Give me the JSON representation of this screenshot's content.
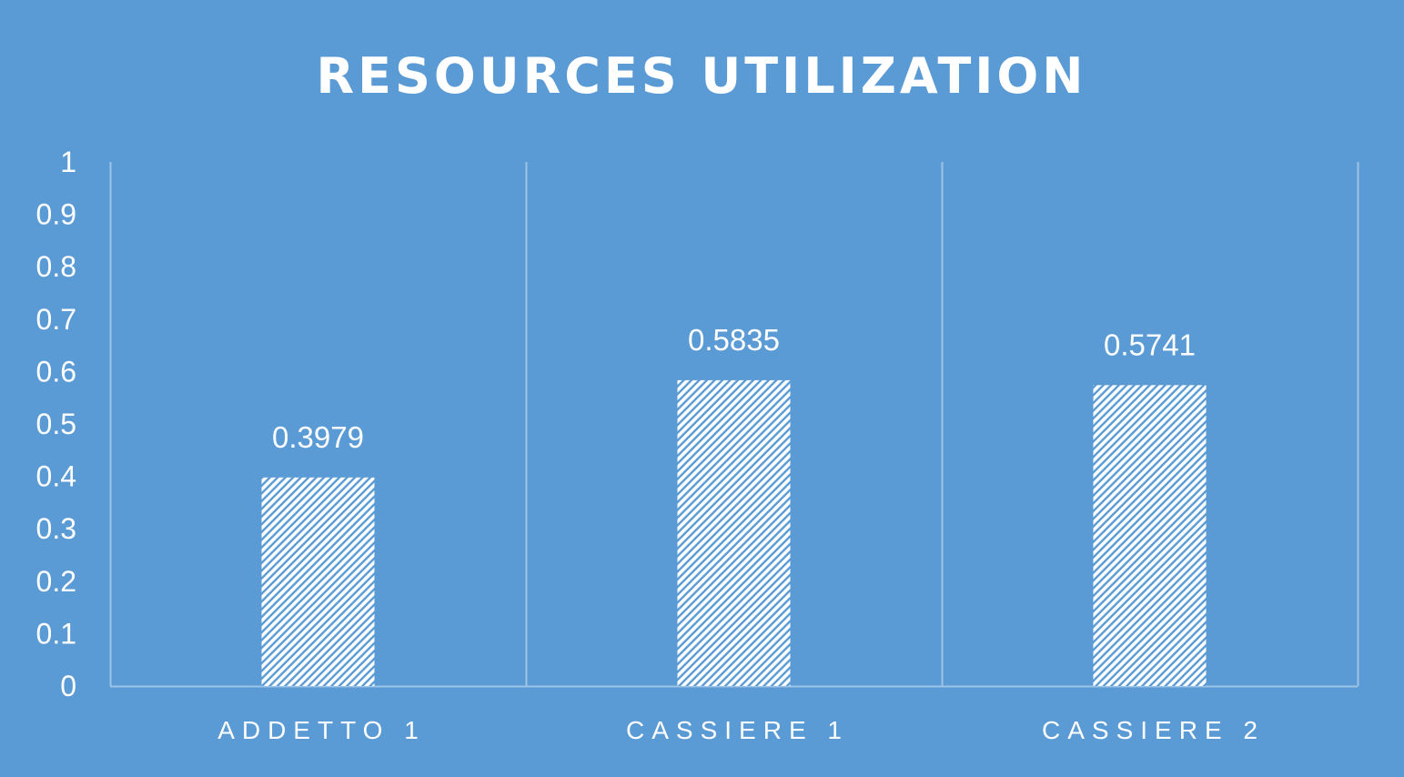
{
  "colors": {
    "background": "#5b9bd5",
    "gridline": "#9dc3e6",
    "bar_fill": "#ffffff",
    "text": "#ffffff"
  },
  "chart_data": {
    "type": "bar",
    "title": "RESOURCES UTILIZATION",
    "xlabel": "",
    "ylabel": "",
    "categories": [
      "ADDETTO 1",
      "CASSIERE 1",
      "CASSIERE 2"
    ],
    "values": [
      0.3979,
      0.5835,
      0.5741
    ],
    "data_labels": [
      "0.3979",
      "0.5835",
      "0.5741"
    ],
    "ylim": [
      0,
      1
    ],
    "yticks": [
      "0",
      "0.1",
      "0.2",
      "0.3",
      "0.4",
      "0.5",
      "0.6",
      "0.7",
      "0.8",
      "0.9",
      "1"
    ],
    "bar_pattern": "diagonal-hatch",
    "grid": "vertical category separators",
    "legend": "none"
  }
}
